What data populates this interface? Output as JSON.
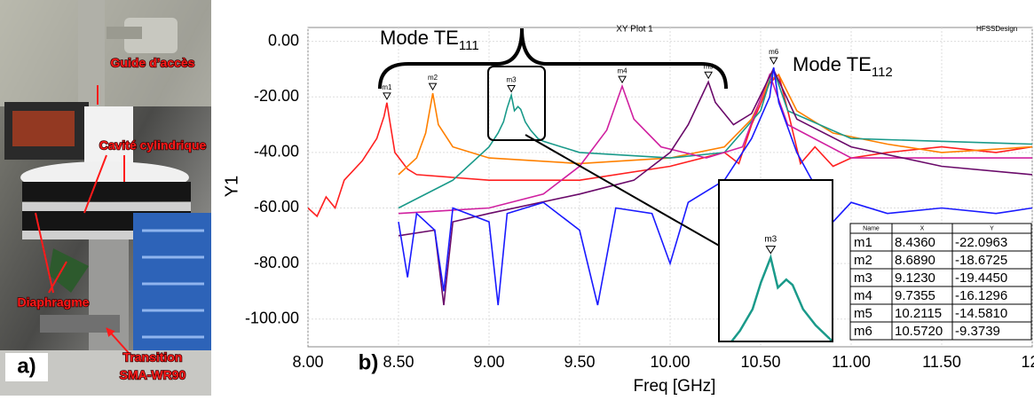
{
  "photo": {
    "labels": [
      "Guide d’accès",
      "Cavité cylindrique",
      "Diaphragme",
      "Transition",
      "SMA-WR90"
    ],
    "panel_label": "a)"
  },
  "chart_data": {
    "type": "line",
    "title": "XY Plot 1",
    "corner_text": "HFSSDesign",
    "panel_label": "b)",
    "x_label": "Freq [GHz]",
    "y_label": "Y1",
    "xlim": [
      8,
      12
    ],
    "ylim": [
      -110,
      5
    ],
    "xticks": [
      {
        "value": 8,
        "label": "8.00"
      },
      {
        "value": 8.5,
        "label": "8.50"
      },
      {
        "value": 9,
        "label": "9.00"
      },
      {
        "value": 9.5,
        "label": "9.50"
      },
      {
        "value": 10,
        "label": "10.00"
      },
      {
        "value": 10.5,
        "label": "10.50"
      },
      {
        "value": 11,
        "label": "11.00"
      },
      {
        "value": 11.5,
        "label": "11.50"
      },
      {
        "value": 12,
        "label": "12."
      }
    ],
    "yticks": [
      {
        "value": 0,
        "label": "0.00"
      },
      {
        "value": -20,
        "label": "-20.00"
      },
      {
        "value": -40,
        "label": "-40.00"
      },
      {
        "value": -60,
        "label": "-60.00"
      },
      {
        "value": -80,
        "label": "-80.00"
      },
      {
        "value": -100,
        "label": "-100.00"
      }
    ],
    "grid": true,
    "annotations": [
      {
        "text": "Mode TE",
        "sub": "111"
      },
      {
        "text": "Mode TE",
        "sub": "112"
      }
    ],
    "series": [
      {
        "name": "m1",
        "color": "#ff2020",
        "x": [
          8.0,
          8.05,
          8.1,
          8.15,
          8.2,
          8.3,
          8.38,
          8.42,
          8.436,
          8.45,
          8.48,
          8.55,
          8.6,
          9.0,
          9.5,
          10.0,
          10.3,
          10.38,
          10.45,
          10.55,
          10.6,
          10.65,
          10.72,
          10.8,
          10.9,
          11.0,
          11.2,
          11.5,
          11.8,
          12.0
        ],
        "values": [
          -60,
          -63,
          -56,
          -60,
          -50,
          -43,
          -35,
          -27,
          -22.1,
          -28,
          -40,
          -46,
          -48,
          -50,
          -50,
          -45,
          -40,
          -44,
          -30,
          -15,
          -12,
          -25,
          -44,
          -38,
          -45,
          -42,
          -40,
          -38,
          -40,
          -38
        ]
      },
      {
        "name": "m2",
        "color": "#ff8000",
        "x": [
          8.5,
          8.6,
          8.65,
          8.689,
          8.72,
          8.8,
          9.0,
          9.5,
          10.0,
          10.3,
          10.45,
          10.55,
          10.6,
          10.7,
          10.9,
          11.2,
          11.5,
          12.0
        ],
        "values": [
          -48,
          -42,
          -33,
          -18.7,
          -30,
          -38,
          -42,
          -44,
          -42,
          -38,
          -28,
          -14,
          -12,
          -25,
          -33,
          -37,
          -40,
          -38
        ]
      },
      {
        "name": "m3",
        "color": "#1a9a8a",
        "x": [
          8.5,
          8.8,
          9.0,
          9.05,
          9.08,
          9.1,
          9.123,
          9.14,
          9.16,
          9.175,
          9.2,
          9.23,
          9.27,
          9.3,
          9.5,
          10.0,
          10.3,
          10.5,
          10.57,
          10.65,
          11.0,
          12.0
        ],
        "values": [
          -60,
          -50,
          -38,
          -33,
          -29,
          -24,
          -19.4,
          -25,
          -23.5,
          -24.5,
          -29,
          -32,
          -35,
          -36,
          -40,
          -42,
          -40,
          -25,
          -10,
          -25,
          -35,
          -37
        ]
      },
      {
        "name": "m4",
        "color": "#d020a0",
        "x": [
          8.5,
          9.0,
          9.3,
          9.5,
          9.65,
          9.7355,
          9.8,
          9.95,
          10.2,
          10.4,
          10.55,
          10.65,
          11.0,
          11.5,
          12.0
        ],
        "values": [
          -62,
          -60,
          -55,
          -45,
          -32,
          -16.1,
          -28,
          -38,
          -42,
          -38,
          -12,
          -30,
          -42,
          -42,
          -42
        ]
      },
      {
        "name": "m5",
        "color": "#6a0a6a",
        "x": [
          8.5,
          8.7,
          8.75,
          8.8,
          9.0,
          9.5,
          9.8,
          10.0,
          10.1,
          10.2115,
          10.25,
          10.35,
          10.45,
          10.57,
          10.7,
          11.0,
          11.5,
          12.0
        ],
        "values": [
          -70,
          -68,
          -95,
          -65,
          -62,
          -55,
          -50,
          -40,
          -30,
          -14.6,
          -22,
          -30,
          -26,
          -10,
          -28,
          -38,
          -45,
          -48
        ]
      },
      {
        "name": "m6",
        "color": "#1a1aff",
        "x": [
          8.5,
          8.55,
          8.6,
          8.7,
          8.75,
          8.8,
          9.0,
          9.05,
          9.1,
          9.3,
          9.5,
          9.6,
          9.7,
          9.9,
          10.0,
          10.1,
          10.3,
          10.45,
          10.55,
          10.572,
          10.6,
          10.7,
          10.8,
          10.9,
          11.0,
          11.2,
          11.5,
          11.8,
          12.0
        ],
        "values": [
          -65,
          -85,
          -62,
          -68,
          -90,
          -60,
          -65,
          -95,
          -62,
          -58,
          -68,
          -95,
          -60,
          -62,
          -80,
          -58,
          -50,
          -35,
          -20,
          -9.4,
          -22,
          -40,
          -52,
          -65,
          -58,
          -62,
          -60,
          -62,
          -60
        ]
      }
    ],
    "markers": {
      "columns": [
        "Name",
        "X",
        "Y"
      ],
      "names": [
        "m1",
        "m2",
        "m3",
        "m4",
        "m5",
        "m6"
      ],
      "x": [
        8.436,
        8.689,
        9.123,
        9.7355,
        10.2115,
        10.572
      ],
      "x_labels": [
        "8.4360",
        "8.6890",
        "9.1230",
        "9.7355",
        "10.2115",
        "10.5720"
      ],
      "y": [
        -22.0963,
        -18.6725,
        -19.445,
        -16.1296,
        -14.581,
        -9.3739
      ],
      "y_labels": [
        "-22.0963",
        "-18.6725",
        "-19.4450",
        "-16.1296",
        "-14.5810",
        "-9.3739"
      ]
    }
  }
}
